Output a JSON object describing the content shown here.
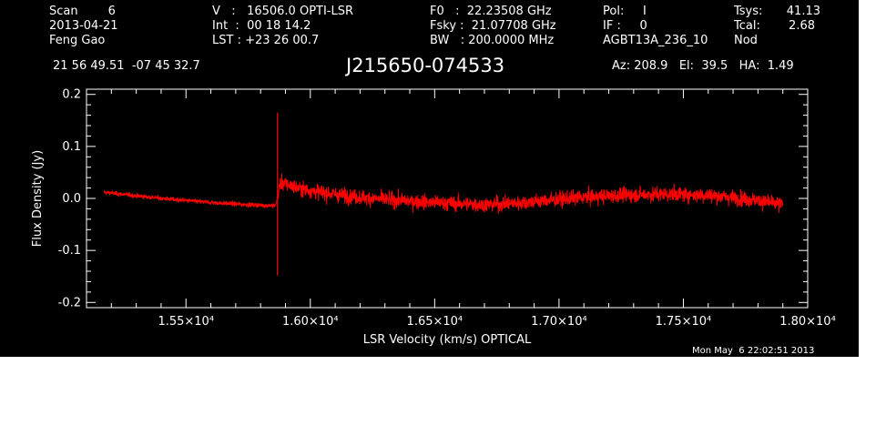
{
  "header": {
    "col1": [
      "Scan        6",
      "2013-04-21",
      "Feng Gao"
    ],
    "col2": [
      "V   :   16506.0 OPTI-LSR",
      "Int  :  00 18 14.2",
      "LST : +23 26 00.7"
    ],
    "col3": [
      "F0   :  22.23508 GHz",
      "Fsky :  21.07708 GHz",
      "BW   : 200.0000 MHz"
    ],
    "col4": [
      "Pol:     I",
      "IF :     0",
      "AGBT13A_236_10"
    ],
    "col5a": [
      "Tsys:",
      "Tcal:",
      "Nod"
    ],
    "col5b": [
      "41.13",
      "2.68",
      ""
    ]
  },
  "coords": "21 56 49.51  -07 45 32.7",
  "source_name": "J215650-074533",
  "az_el_ha": "Az: 208.9   El:  39.5   HA:  1.49",
  "timestamp": "Mon May  6 22:02:51 2013",
  "colors": {
    "background": "#000000",
    "axes": "#ffffff",
    "series": "#ff0000",
    "page": "#ffffff"
  },
  "chart_data": {
    "type": "line",
    "title": "J215650-074533",
    "xlabel": "LSR Velocity (km/s) OPTICAL",
    "ylabel": "Flux Density (Jy)",
    "xlim": [
      15100,
      18000
    ],
    "ylim": [
      -0.21,
      0.21
    ],
    "xticks": [
      {
        "value": 15500,
        "label": "1.55×10⁴"
      },
      {
        "value": 16000,
        "label": "1.60×10⁴"
      },
      {
        "value": 16500,
        "label": "1.65×10⁴"
      },
      {
        "value": 17000,
        "label": "1.70×10⁴"
      },
      {
        "value": 17500,
        "label": "1.75×10⁴"
      },
      {
        "value": 18000,
        "label": "1.80×10⁴"
      }
    ],
    "yticks": [
      {
        "value": 0.2,
        "label": "0.2"
      },
      {
        "value": 0.1,
        "label": "0.1"
      },
      {
        "value": 0.0,
        "label": "0.0"
      },
      {
        "value": -0.1,
        "label": "-0.1"
      },
      {
        "value": -0.2,
        "label": "-0.2"
      }
    ],
    "grid": false,
    "series": [
      {
        "x": [
          15170,
          15300,
          15450,
          15600,
          15750,
          15860,
          15865,
          15870,
          15880,
          15900,
          15950,
          16000,
          16100,
          16200,
          16300,
          16400,
          16500,
          16600,
          16700,
          16800,
          16900,
          17000,
          17100,
          17200,
          17300,
          17400,
          17500,
          17600,
          17700,
          17800,
          17900
        ],
        "y": [
          0.012,
          0.005,
          -0.002,
          -0.008,
          -0.012,
          -0.014,
          0.16,
          -0.15,
          0.03,
          0.028,
          0.02,
          0.015,
          0.008,
          0.002,
          -0.002,
          -0.005,
          -0.008,
          -0.01,
          -0.012,
          -0.01,
          -0.006,
          -0.002,
          0.002,
          0.005,
          0.007,
          0.008,
          0.008,
          0.006,
          0.002,
          -0.004,
          -0.012
        ],
        "noise_rms_left": 0.003,
        "noise_rms_right": 0.01,
        "spike_x": 15868,
        "spike_ymax": 0.165,
        "spike_ymin": -0.148
      }
    ]
  }
}
